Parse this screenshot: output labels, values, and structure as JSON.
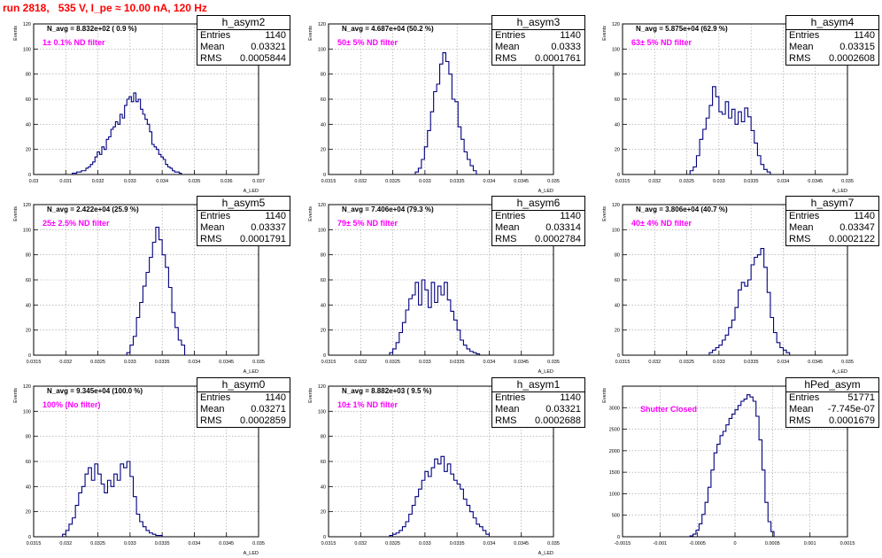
{
  "page_title": "run 2818,   535 V, I_pe ≈ 10.00 nA, 120 Hz",
  "colors": {
    "title": "#ff0000",
    "annotation": "#ff00ff",
    "histogram": "#000080",
    "grid": "#9a9a9a"
  },
  "chart_data": [
    {
      "type": "bar",
      "name": "h_asym2",
      "header": "N_avg = 8.832e+02 ( 0.9 %)",
      "annotation": "1± 0.1% ND filter",
      "ylabel": "Events",
      "xlabel": "A_LED",
      "grid": true,
      "xlim": [
        0.03,
        0.037
      ],
      "ylim": [
        0,
        120
      ],
      "xticks": [
        0.03,
        0.031,
        0.032,
        0.033,
        0.034,
        0.035,
        0.036,
        0.037
      ],
      "xtick_labels": [
        "0.03",
        "0.031",
        "0.032",
        "0.033",
        "0.034",
        "0.035",
        "0.036",
        "0.037"
      ],
      "yticks": [
        0,
        20,
        40,
        60,
        80,
        100,
        120
      ],
      "ytick_labels": [
        "0",
        "20",
        "40",
        "60",
        "80",
        "100",
        "120"
      ],
      "stats": {
        "entries": "1140",
        "mean": "0.03321",
        "rms": "0.0005844"
      },
      "bin_edges": [
        0.0312,
        0.0346
      ],
      "values": [
        1,
        1,
        2,
        2,
        3,
        3,
        5,
        6,
        8,
        10,
        14,
        18,
        16,
        22,
        20,
        28,
        30,
        36,
        38,
        42,
        40,
        48,
        45,
        55,
        60,
        62,
        58,
        65,
        58,
        60,
        52,
        48,
        44,
        40,
        34,
        24,
        22,
        20,
        16,
        14,
        12,
        8,
        6,
        5,
        3,
        2,
        2,
        1
      ]
    },
    {
      "type": "bar",
      "name": "h_asym3",
      "header": "N_avg = 4.687e+04 (50.2 %)",
      "annotation": "50± 5% ND filter",
      "ylabel": "Events",
      "xlabel": "A_LED",
      "grid": true,
      "xlim": [
        0.0315,
        0.035
      ],
      "ylim": [
        0,
        120
      ],
      "xticks": [
        0.0315,
        0.032,
        0.0325,
        0.033,
        0.0335,
        0.034,
        0.0345,
        0.035
      ],
      "xtick_labels": [
        "0.0315",
        "0.032",
        "0.0325",
        "0.033",
        "0.0335",
        "0.034",
        "0.0345",
        "0.035"
      ],
      "yticks": [
        0,
        20,
        40,
        60,
        80,
        100,
        120
      ],
      "ytick_labels": [
        "0",
        "20",
        "40",
        "60",
        "80",
        "100",
        "120"
      ],
      "stats": {
        "entries": "1140",
        "mean": "0.0333",
        "rms": "0.0001761"
      },
      "bin_edges": [
        0.03285,
        0.0338
      ],
      "values": [
        2,
        5,
        12,
        22,
        35,
        50,
        66,
        72,
        88,
        97,
        90,
        80,
        60,
        58,
        38,
        28,
        18,
        12,
        7,
        3
      ]
    },
    {
      "type": "bar",
      "name": "h_asym4",
      "header": "N_avg = 5.875e+04 (62.9 %)",
      "annotation": "63± 5% ND filter",
      "ylabel": "Events",
      "xlabel": "A_LED",
      "grid": true,
      "xlim": [
        0.0315,
        0.035
      ],
      "ylim": [
        0,
        120
      ],
      "xticks": [
        0.0315,
        0.032,
        0.0325,
        0.033,
        0.0335,
        0.034,
        0.0345,
        0.035
      ],
      "xtick_labels": [
        "0.0315",
        "0.032",
        "0.0325",
        "0.033",
        "0.0335",
        "0.034",
        "0.0345",
        "0.035"
      ],
      "yticks": [
        0,
        20,
        40,
        60,
        80,
        100,
        120
      ],
      "ytick_labels": [
        "0",
        "20",
        "40",
        "60",
        "80",
        "100",
        "120"
      ],
      "stats": {
        "entries": "1140",
        "mean": "0.03315",
        "rms": "0.0002608"
      },
      "bin_edges": [
        0.03255,
        0.0338
      ],
      "values": [
        3,
        6,
        15,
        28,
        36,
        45,
        55,
        70,
        62,
        50,
        48,
        58,
        45,
        52,
        40,
        50,
        42,
        53,
        46,
        35,
        25,
        15,
        8,
        4,
        2
      ]
    },
    {
      "type": "bar",
      "name": "h_asym5",
      "header": "N_avg = 2.422e+04 (25.9 %)",
      "annotation": "25± 2.5% ND filter",
      "ylabel": "Events",
      "xlabel": "A_LED",
      "grid": true,
      "xlim": [
        0.0315,
        0.035
      ],
      "ylim": [
        0,
        120
      ],
      "xticks": [
        0.0315,
        0.032,
        0.0325,
        0.033,
        0.0335,
        0.034,
        0.0345,
        0.035
      ],
      "xtick_labels": [
        "0.0315",
        "0.032",
        "0.0325",
        "0.033",
        "0.0335",
        "0.034",
        "0.0345",
        "0.035"
      ],
      "yticks": [
        0,
        20,
        40,
        60,
        80,
        100,
        120
      ],
      "ytick_labels": [
        "0",
        "20",
        "40",
        "60",
        "80",
        "100",
        "120"
      ],
      "stats": {
        "entries": "1140",
        "mean": "0.03337",
        "rms": "0.0001791"
      },
      "bin_edges": [
        0.03295,
        0.03385
      ],
      "values": [
        2,
        8,
        15,
        30,
        42,
        55,
        66,
        78,
        90,
        102,
        92,
        80,
        70,
        54,
        34,
        22,
        12,
        8
      ]
    },
    {
      "type": "bar",
      "name": "h_asym6",
      "header": "N_avg = 7.406e+04 (79.3 %)",
      "annotation": "79± 5% ND filter",
      "ylabel": "Events",
      "xlabel": "A_LED",
      "grid": true,
      "xlim": [
        0.0315,
        0.035
      ],
      "ylim": [
        0,
        120
      ],
      "xticks": [
        0.0315,
        0.032,
        0.0325,
        0.033,
        0.0335,
        0.034,
        0.0345,
        0.035
      ],
      "xtick_labels": [
        "0.0315",
        "0.032",
        "0.0325",
        "0.033",
        "0.0335",
        "0.034",
        "0.0345",
        "0.035"
      ],
      "yticks": [
        0,
        20,
        40,
        60,
        80,
        100,
        120
      ],
      "ytick_labels": [
        "0",
        "20",
        "40",
        "60",
        "80",
        "100",
        "120"
      ],
      "stats": {
        "entries": "1140",
        "mean": "0.03314",
        "rms": "0.0002784"
      },
      "bin_edges": [
        0.03245,
        0.03385
      ],
      "values": [
        2,
        5,
        10,
        18,
        26,
        36,
        45,
        48,
        58,
        40,
        60,
        52,
        38,
        58,
        42,
        55,
        48,
        58,
        44,
        35,
        28,
        20,
        12,
        8,
        5,
        3,
        2,
        1
      ]
    },
    {
      "type": "bar",
      "name": "h_asym7",
      "header": "N_avg = 3.806e+04 (40.7 %)",
      "annotation": "40± 4% ND filter",
      "ylabel": "Events",
      "xlabel": "A_LED",
      "grid": true,
      "xlim": [
        0.0315,
        0.035
      ],
      "ylim": [
        0,
        120
      ],
      "xticks": [
        0.0315,
        0.032,
        0.0325,
        0.033,
        0.0335,
        0.034,
        0.0345,
        0.035
      ],
      "xtick_labels": [
        "0.0315",
        "0.032",
        "0.0325",
        "0.033",
        "0.0335",
        "0.034",
        "0.0345",
        "0.035"
      ],
      "yticks": [
        0,
        20,
        40,
        60,
        80,
        100,
        120
      ],
      "ytick_labels": [
        "0",
        "20",
        "40",
        "60",
        "80",
        "100",
        "120"
      ],
      "stats": {
        "entries": "1140",
        "mean": "0.03347",
        "rms": "0.0002122"
      },
      "bin_edges": [
        0.03285,
        0.0341
      ],
      "values": [
        2,
        4,
        6,
        8,
        12,
        16,
        22,
        28,
        38,
        52,
        58,
        55,
        60,
        72,
        78,
        80,
        85,
        70,
        50,
        30,
        18,
        10,
        6,
        4,
        2
      ]
    },
    {
      "type": "bar",
      "name": "h_asym0",
      "header": "N_avg = 9.345e+04 (100.0 %)",
      "annotation": "100% (No filter)",
      "ylabel": "Events",
      "xlabel": "A_LED",
      "grid": true,
      "xlim": [
        0.0315,
        0.035
      ],
      "ylim": [
        0,
        120
      ],
      "xticks": [
        0.0315,
        0.032,
        0.0325,
        0.033,
        0.0335,
        0.034,
        0.0345,
        0.035
      ],
      "xtick_labels": [
        "0.0315",
        "0.032",
        "0.0325",
        "0.033",
        "0.0335",
        "0.034",
        "0.0345",
        "0.035"
      ],
      "yticks": [
        0,
        20,
        40,
        60,
        80,
        100,
        120
      ],
      "ytick_labels": [
        "0",
        "20",
        "40",
        "60",
        "80",
        "100",
        "120"
      ],
      "stats": {
        "entries": "1140",
        "mean": "0.03271",
        "rms": "0.0002859"
      },
      "bin_edges": [
        0.03195,
        0.0335
      ],
      "values": [
        2,
        5,
        10,
        15,
        25,
        35,
        40,
        50,
        55,
        45,
        58,
        50,
        42,
        35,
        45,
        40,
        50,
        45,
        58,
        55,
        60,
        48,
        32,
        18,
        12,
        8,
        5,
        3,
        2,
        1,
        1
      ]
    },
    {
      "type": "bar",
      "name": "h_asym1",
      "header": "N_avg = 8.882e+03 ( 9.5 %)",
      "annotation": "10± 1% ND filter",
      "ylabel": "Events",
      "xlabel": "A_LED",
      "grid": true,
      "xlim": [
        0.0315,
        0.035
      ],
      "ylim": [
        0,
        120
      ],
      "xticks": [
        0.0315,
        0.032,
        0.0325,
        0.033,
        0.0335,
        0.034,
        0.0345,
        0.035
      ],
      "xtick_labels": [
        "0.0315",
        "0.032",
        "0.0325",
        "0.033",
        "0.0335",
        "0.034",
        "0.0345",
        "0.035"
      ],
      "yticks": [
        0,
        20,
        40,
        60,
        80,
        100,
        120
      ],
      "ytick_labels": [
        "0",
        "20",
        "40",
        "60",
        "80",
        "100",
        "120"
      ],
      "stats": {
        "entries": "1140",
        "mean": "0.03321",
        "rms": "0.0002688"
      },
      "bin_edges": [
        0.03245,
        0.034
      ],
      "values": [
        1,
        2,
        3,
        5,
        8,
        12,
        18,
        25,
        32,
        38,
        45,
        52,
        48,
        55,
        62,
        58,
        64,
        52,
        58,
        50,
        45,
        42,
        38,
        30,
        25,
        20,
        15,
        10,
        8,
        5,
        2
      ]
    },
    {
      "type": "bar",
      "name": "hPed_asym",
      "header": "",
      "annotation": "Shutter Closed",
      "ylabel": "Events",
      "xlabel": "",
      "grid": true,
      "xlim": [
        -0.0015,
        0.0015
      ],
      "ylim": [
        0,
        3500
      ],
      "xticks": [
        -0.0015,
        -0.001,
        -0.0005,
        0,
        0.0005,
        0.001,
        0.0015
      ],
      "xtick_labels": [
        "-0.0015",
        "-0.001",
        "-0.0005",
        "0",
        "0.0005",
        "0.001",
        "0.0015"
      ],
      "yticks": [
        0,
        500,
        1000,
        1500,
        2000,
        2500,
        3000
      ],
      "ytick_labels": [
        "0",
        "500",
        "1000",
        "1500",
        "2000",
        "2500",
        "3000"
      ],
      "stats": {
        "entries": "51771",
        "mean": "-7.745e-07",
        "rms": "0.0001679"
      },
      "bin_edges": [
        -0.0006,
        0.00052
      ],
      "values": [
        20,
        60,
        150,
        300,
        520,
        800,
        1150,
        1550,
        1950,
        2150,
        2350,
        2450,
        2600,
        2750,
        2850,
        2950,
        3050,
        3150,
        3200,
        3300,
        3250,
        3150,
        2800,
        2250,
        1550,
        800,
        350,
        120
      ]
    }
  ]
}
